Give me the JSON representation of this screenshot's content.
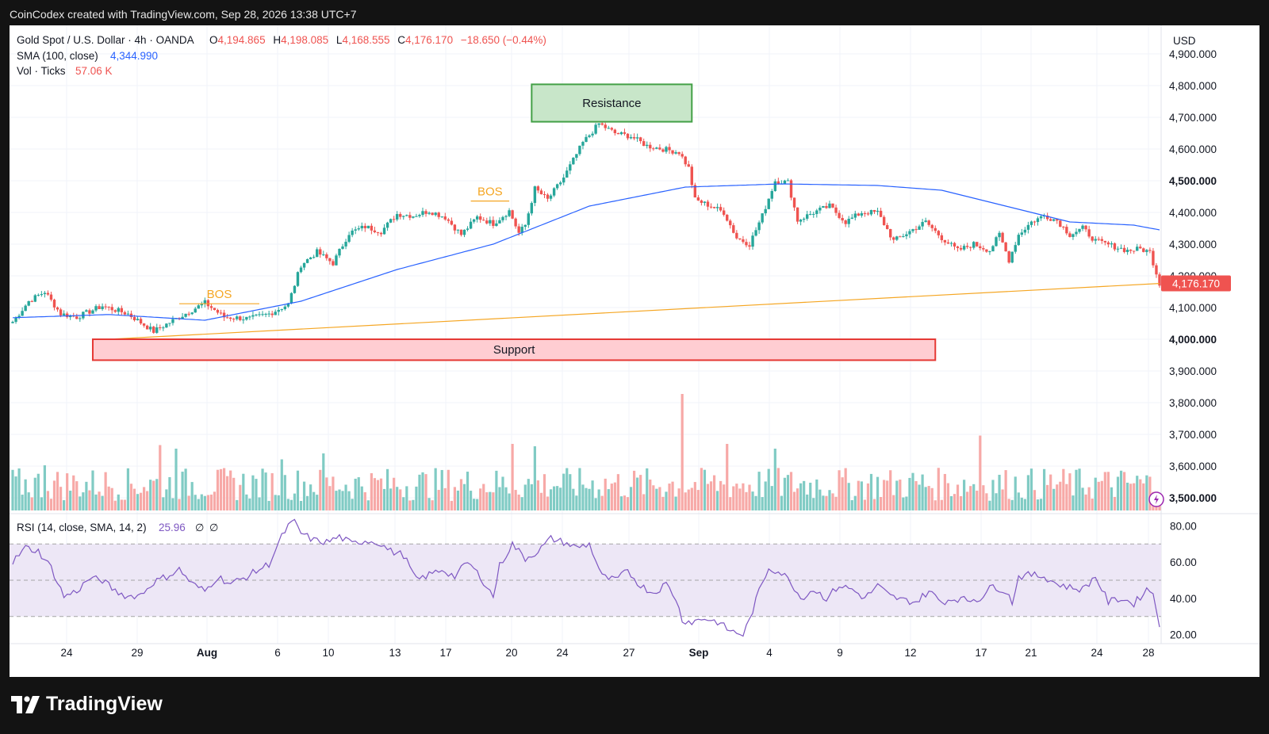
{
  "header": {
    "caption": "CoinCodex created with TradingView.com, Sep 28, 2026 13:38 UTC+7"
  },
  "legend": {
    "symbol": "Gold Spot / U.S. Dollar · 4h · OANDA",
    "o_label": "O",
    "o_value": "4,194.865",
    "h_label": "H",
    "h_value": "4,198.085",
    "l_label": "L",
    "l_value": "4,168.555",
    "c_label": "C",
    "c_value": "4,176.170",
    "change": "−18.650 (−0.44%)",
    "sma_label": "SMA (100, close)",
    "sma_value": "4,344.990",
    "vol_label": "Vol · Ticks",
    "vol_value": "57.06 K"
  },
  "currency": "USD",
  "price_tag": "4,176.170",
  "rsi_legend": {
    "label": "RSI (14, close, SMA, 14, 2)",
    "value": "25.96",
    "extra1": "∅",
    "extra2": "∅"
  },
  "annotations": {
    "resistance": "Resistance",
    "support": "Support",
    "bos1": "BOS",
    "bos2": "BOS"
  },
  "brand": {
    "name": "TradingView"
  },
  "colors": {
    "up": "#26a69a",
    "down": "#ef5350",
    "sma": "#2962ff",
    "trend": "#f5a623",
    "rsi": "#7e57c2",
    "resistance_fill": "#c8e6c9",
    "resistance_border": "#43a047",
    "support_fill": "#ffcdd2",
    "support_border": "#e53935"
  },
  "chart_data": {
    "type": "candlestick",
    "price_axis": {
      "ticks": [
        "4,900.000",
        "4,800.000",
        "4,700.000",
        "4,600.000",
        "4,500.000",
        "4,400.000",
        "4,300.000",
        "4,200.000",
        "4,100.000",
        "4,000.000",
        "3,900.000",
        "3,800.000",
        "3,700.000",
        "3,600.000",
        "3,500.000"
      ],
      "bold_ticks": [
        "4,500.000",
        "4,000.000",
        "3,500.000"
      ],
      "range": [
        3460,
        4990
      ]
    },
    "rsi_axis": {
      "ticks": [
        "80.00",
        "60.00",
        "40.00",
        "20.00"
      ],
      "range": [
        15,
        85
      ],
      "bands": [
        70,
        50,
        30
      ]
    },
    "x_axis": {
      "ticks": [
        "24",
        "29",
        "Aug",
        "6",
        "10",
        "13",
        "17",
        "20",
        "24",
        "27",
        "Sep",
        "4",
        "9",
        "12",
        "17",
        "21",
        "24",
        "28"
      ],
      "bold_ticks": [
        "Aug",
        "Sep"
      ]
    },
    "close_anchors": [
      [
        0,
        4055
      ],
      [
        5,
        4120
      ],
      [
        10,
        4150
      ],
      [
        15,
        4080
      ],
      [
        20,
        4070
      ],
      [
        28,
        4105
      ],
      [
        36,
        4080
      ],
      [
        44,
        4025
      ],
      [
        52,
        4070
      ],
      [
        60,
        4115
      ],
      [
        66,
        4070
      ],
      [
        74,
        4065
      ],
      [
        80,
        4080
      ],
      [
        86,
        4110
      ],
      [
        90,
        4235
      ],
      [
        95,
        4275
      ],
      [
        100,
        4240
      ],
      [
        105,
        4335
      ],
      [
        110,
        4355
      ],
      [
        115,
        4340
      ],
      [
        120,
        4395
      ],
      [
        125,
        4390
      ],
      [
        130,
        4405
      ],
      [
        135,
        4385
      ],
      [
        140,
        4330
      ],
      [
        145,
        4385
      ],
      [
        150,
        4365
      ],
      [
        155,
        4405
      ],
      [
        158,
        4335
      ],
      [
        160,
        4360
      ],
      [
        163,
        4475
      ],
      [
        167,
        4440
      ],
      [
        172,
        4510
      ],
      [
        178,
        4620
      ],
      [
        183,
        4680
      ],
      [
        188,
        4650
      ],
      [
        193,
        4640
      ],
      [
        198,
        4610
      ],
      [
        203,
        4600
      ],
      [
        208,
        4590
      ],
      [
        211,
        4540
      ],
      [
        213,
        4440
      ],
      [
        218,
        4420
      ],
      [
        222,
        4400
      ],
      [
        226,
        4320
      ],
      [
        230,
        4300
      ],
      [
        234,
        4390
      ],
      [
        238,
        4500
      ],
      [
        242,
        4495
      ],
      [
        245,
        4375
      ],
      [
        250,
        4400
      ],
      [
        255,
        4420
      ],
      [
        260,
        4370
      ],
      [
        265,
        4400
      ],
      [
        270,
        4400
      ],
      [
        275,
        4310
      ],
      [
        280,
        4340
      ],
      [
        285,
        4370
      ],
      [
        290,
        4320
      ],
      [
        295,
        4280
      ],
      [
        300,
        4300
      ],
      [
        305,
        4280
      ],
      [
        308,
        4330
      ],
      [
        311,
        4250
      ],
      [
        314,
        4330
      ],
      [
        318,
        4370
      ],
      [
        322,
        4390
      ],
      [
        326,
        4375
      ],
      [
        330,
        4330
      ],
      [
        334,
        4350
      ],
      [
        338,
        4310
      ],
      [
        343,
        4295
      ],
      [
        348,
        4280
      ],
      [
        352,
        4285
      ],
      [
        355,
        4275
      ],
      [
        358,
        4176
      ]
    ],
    "rsi_anchors": [
      [
        0,
        60
      ],
      [
        4,
        68
      ],
      [
        8,
        66
      ],
      [
        12,
        57
      ],
      [
        16,
        41
      ],
      [
        20,
        44
      ],
      [
        24,
        51
      ],
      [
        28,
        50
      ],
      [
        32,
        44
      ],
      [
        36,
        41
      ],
      [
        40,
        42
      ],
      [
        44,
        49
      ],
      [
        48,
        52
      ],
      [
        52,
        56
      ],
      [
        56,
        48
      ],
      [
        60,
        44
      ],
      [
        64,
        52
      ],
      [
        68,
        48
      ],
      [
        72,
        51
      ],
      [
        76,
        55
      ],
      [
        80,
        59
      ],
      [
        84,
        74
      ],
      [
        86,
        80
      ],
      [
        88,
        82
      ],
      [
        90,
        76
      ],
      [
        94,
        72
      ],
      [
        98,
        71
      ],
      [
        102,
        74
      ],
      [
        106,
        70
      ],
      [
        110,
        72
      ],
      [
        114,
        71
      ],
      [
        118,
        66
      ],
      [
        122,
        64
      ],
      [
        126,
        50
      ],
      [
        130,
        53
      ],
      [
        134,
        56
      ],
      [
        138,
        52
      ],
      [
        142,
        60
      ],
      [
        146,
        52
      ],
      [
        150,
        41
      ],
      [
        152,
        58
      ],
      [
        156,
        70
      ],
      [
        160,
        62
      ],
      [
        164,
        66
      ],
      [
        168,
        73
      ],
      [
        172,
        71
      ],
      [
        176,
        68
      ],
      [
        180,
        70
      ],
      [
        184,
        52
      ],
      [
        188,
        50
      ],
      [
        192,
        55
      ],
      [
        196,
        47
      ],
      [
        200,
        43
      ],
      [
        204,
        48
      ],
      [
        207,
        40
      ],
      [
        209,
        28
      ],
      [
        212,
        27
      ],
      [
        216,
        29
      ],
      [
        220,
        27
      ],
      [
        224,
        22
      ],
      [
        228,
        20
      ],
      [
        230,
        28
      ],
      [
        233,
        44
      ],
      [
        236,
        57
      ],
      [
        240,
        54
      ],
      [
        243,
        49
      ],
      [
        246,
        40
      ],
      [
        250,
        45
      ],
      [
        254,
        40
      ],
      [
        258,
        47
      ],
      [
        262,
        45
      ],
      [
        266,
        40
      ],
      [
        270,
        47
      ],
      [
        274,
        41
      ],
      [
        278,
        39
      ],
      [
        282,
        38
      ],
      [
        286,
        44
      ],
      [
        290,
        38
      ],
      [
        294,
        40
      ],
      [
        298,
        39
      ],
      [
        302,
        40
      ],
      [
        306,
        47
      ],
      [
        310,
        44
      ],
      [
        312,
        38
      ],
      [
        314,
        52
      ],
      [
        318,
        53
      ],
      [
        322,
        52
      ],
      [
        326,
        48
      ],
      [
        330,
        46
      ],
      [
        334,
        45
      ],
      [
        338,
        52
      ],
      [
        342,
        38
      ],
      [
        346,
        40
      ],
      [
        350,
        37
      ],
      [
        354,
        45
      ],
      [
        356,
        43
      ],
      [
        358,
        26
      ]
    ],
    "sma_anchors": [
      [
        0,
        4068
      ],
      [
        30,
        4078
      ],
      [
        60,
        4060
      ],
      [
        90,
        4120
      ],
      [
        120,
        4220
      ],
      [
        150,
        4300
      ],
      [
        180,
        4420
      ],
      [
        210,
        4480
      ],
      [
        240,
        4490
      ],
      [
        270,
        4485
      ],
      [
        290,
        4470
      ],
      [
        310,
        4420
      ],
      [
        330,
        4370
      ],
      [
        350,
        4360
      ],
      [
        358,
        4345
      ]
    ],
    "trendline": {
      "from": [
        30,
        4000
      ],
      "to": [
        358,
        4176
      ]
    },
    "bos_levels": [
      {
        "from": [
          52,
          4112
        ],
        "to": [
          77,
          4112
        ]
      },
      {
        "from": [
          143,
          4436
        ],
        "to": [
          155,
          4436
        ]
      }
    ],
    "resistance_zone": {
      "from_x": 162,
      "to_x": 212,
      "y_top": 4804,
      "y_bottom": 4686
    },
    "support_zone": {
      "from_x": 25,
      "to_x": 288,
      "y_top": 4000,
      "y_bottom": 3934
    },
    "volume_spikes": [
      [
        10,
        0.38
      ],
      [
        46,
        0.55
      ],
      [
        51,
        0.52
      ],
      [
        84,
        0.43
      ],
      [
        97,
        0.48
      ],
      [
        156,
        0.56
      ],
      [
        163,
        0.54
      ],
      [
        209,
        0.98
      ],
      [
        223,
        0.56
      ],
      [
        238,
        0.52
      ],
      [
        302,
        0.63
      ]
    ]
  }
}
